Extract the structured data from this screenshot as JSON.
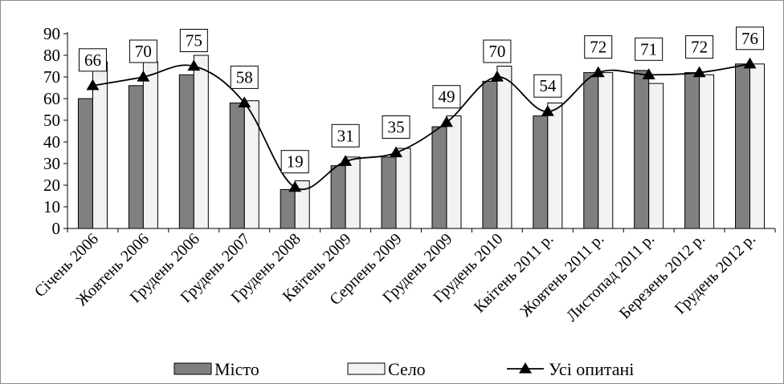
{
  "chart_data": {
    "type": "bar",
    "categories": [
      "Січень 2006",
      "Жовтень 2006",
      "Грудень 2006",
      "Грудень 2007",
      "Грудень 2008",
      "Квітень 2009",
      "Серпень 2009",
      "Грудень 2009",
      "Грудень 2010",
      "Квітень 2011 р.",
      "Жовтень 2011 р.",
      "Листопад 2011 р.",
      "Березень 2012 р.",
      "Грудень 2012 р."
    ],
    "series": [
      {
        "name": "Місто",
        "type": "bar",
        "color": "#808080",
        "values": [
          60,
          66,
          71,
          58,
          18,
          29,
          33,
          47,
          68,
          52,
          72,
          73,
          72,
          76
        ]
      },
      {
        "name": "Село",
        "type": "bar",
        "color": "#f2f2f2",
        "values": [
          77,
          77,
          80,
          59,
          22,
          33,
          37,
          52,
          75,
          58,
          72,
          67,
          71,
          76
        ]
      },
      {
        "name": "Усі опитані",
        "type": "line",
        "color": "#000000",
        "marker": "triangle",
        "values": [
          66,
          70,
          75,
          58,
          19,
          31,
          35,
          49,
          70,
          54,
          72,
          71,
          72,
          76
        ]
      }
    ],
    "ylim": [
      0,
      90
    ],
    "yticks": [
      "0",
      "10",
      "20",
      "30",
      "40",
      "50",
      "60",
      "70",
      "80",
      "90"
    ],
    "grid": false,
    "legend_position": "bottom",
    "data_labels": [
      "66",
      "70",
      "75",
      "58",
      "19",
      "31",
      "35",
      "49",
      "70",
      "54",
      "72",
      "71",
      "72",
      "76"
    ]
  }
}
